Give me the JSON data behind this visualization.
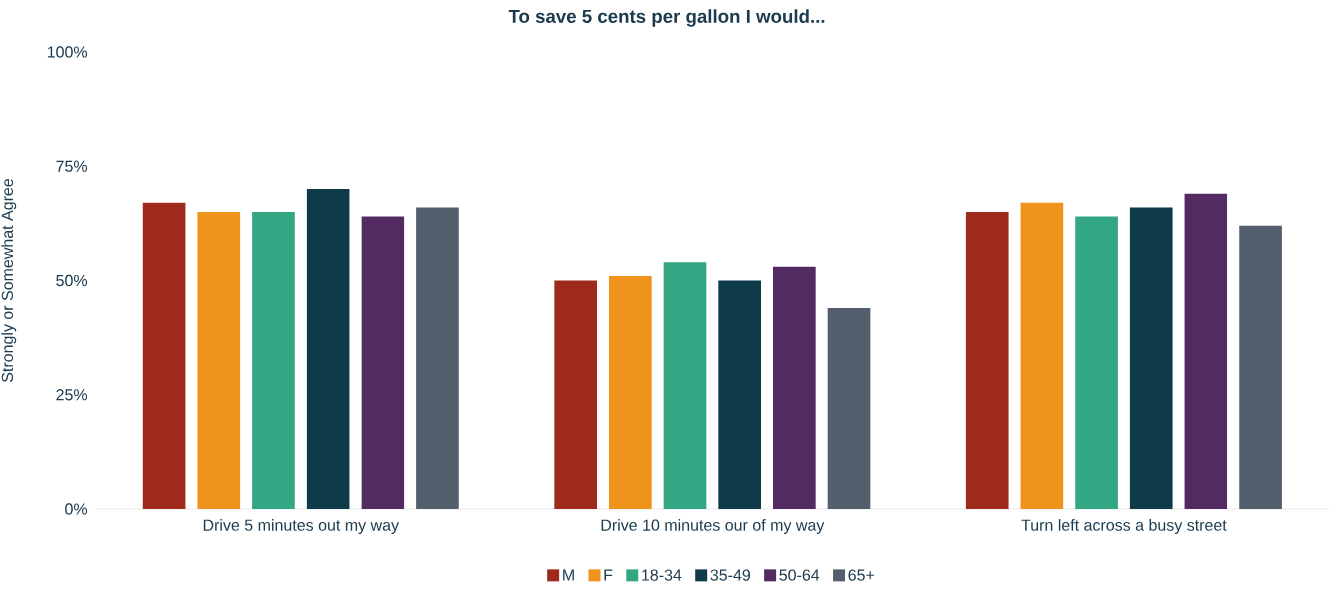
{
  "chart_data": {
    "type": "bar",
    "title": "To save 5 cents per gallon I would...",
    "ylabel": "Strongly or Somewhat Agree",
    "categories": [
      "Drive 5 minutes out my way",
      "Drive 10 minutes our of my way",
      "Turn left across a busy street"
    ],
    "series": [
      {
        "name": "M",
        "color": "#9e2a1b",
        "values": [
          67,
          50,
          65
        ]
      },
      {
        "name": "F",
        "color": "#ef931d",
        "values": [
          65,
          51,
          67
        ]
      },
      {
        "name": "18-34",
        "color": "#33a683",
        "values": [
          65,
          54,
          64
        ]
      },
      {
        "name": "35-49",
        "color": "#0f3a4a",
        "values": [
          70,
          50,
          66
        ]
      },
      {
        "name": "50-64",
        "color": "#512b62",
        "values": [
          64,
          53,
          69
        ]
      },
      {
        "name": "65+",
        "color": "#545f6d",
        "values": [
          66,
          44,
          62
        ]
      }
    ],
    "ylim": [
      0,
      100
    ],
    "yticks": [
      {
        "value": 0,
        "label": "0%"
      },
      {
        "value": 25,
        "label": "25%"
      },
      {
        "value": 50,
        "label": "50%"
      },
      {
        "value": 75,
        "label": "75%"
      },
      {
        "value": 100,
        "label": "100%"
      }
    ],
    "legend": "bottom"
  }
}
